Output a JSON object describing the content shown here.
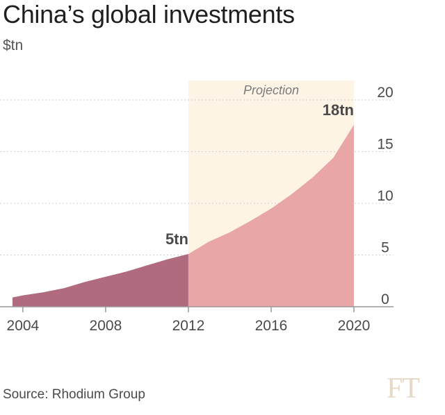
{
  "title": "China’s global investments",
  "unit_label": "$tn",
  "source": "Source: Rhodium Group",
  "logo": "FT",
  "colors": {
    "historical": "#b06c7e",
    "projection": "#e8a7a6",
    "projection_band": "#fdf4e6",
    "grid": "#cfcfcf",
    "axis": "#999999",
    "text": "#4a4a4a"
  },
  "chart_data": {
    "type": "area",
    "x": [
      2003.5,
      2004,
      2005,
      2006,
      2007,
      2008,
      2009,
      2010,
      2011,
      2012,
      2013,
      2014,
      2015,
      2016,
      2017,
      2018,
      2019,
      2020
    ],
    "series": [
      {
        "values": [
          0.9,
          1.1,
          1.4,
          1.8,
          2.4,
          2.9,
          3.4,
          4.0,
          4.6,
          5.1,
          null,
          null,
          null,
          null,
          null,
          null,
          null,
          null
        ]
      },
      {
        "values": [
          null,
          null,
          null,
          null,
          null,
          null,
          null,
          null,
          null,
          5.1,
          6.3,
          7.2,
          8.3,
          9.5,
          10.9,
          12.5,
          14.4,
          17.6
        ]
      }
    ],
    "projection_band": {
      "x_start": 2012,
      "x_end": 2020,
      "label": "Projection"
    },
    "annotations": [
      {
        "x": 2012,
        "y": 5.1,
        "text": "5tn"
      },
      {
        "x": 2020,
        "y": 17.6,
        "text": "18tn"
      }
    ],
    "xticks": [
      2004,
      2008,
      2012,
      2016,
      2020
    ],
    "xtick_labels": [
      "2004",
      "2008",
      "2012",
      "2016",
      "2020"
    ],
    "yticks": [
      0,
      5,
      10,
      15,
      20
    ],
    "ytick_labels": [
      "0",
      "5",
      "10",
      "15",
      "20"
    ],
    "ylim": [
      0,
      20
    ],
    "xlim": [
      2003.5,
      2020
    ],
    "grid": true,
    "y_axis_side": "right"
  }
}
